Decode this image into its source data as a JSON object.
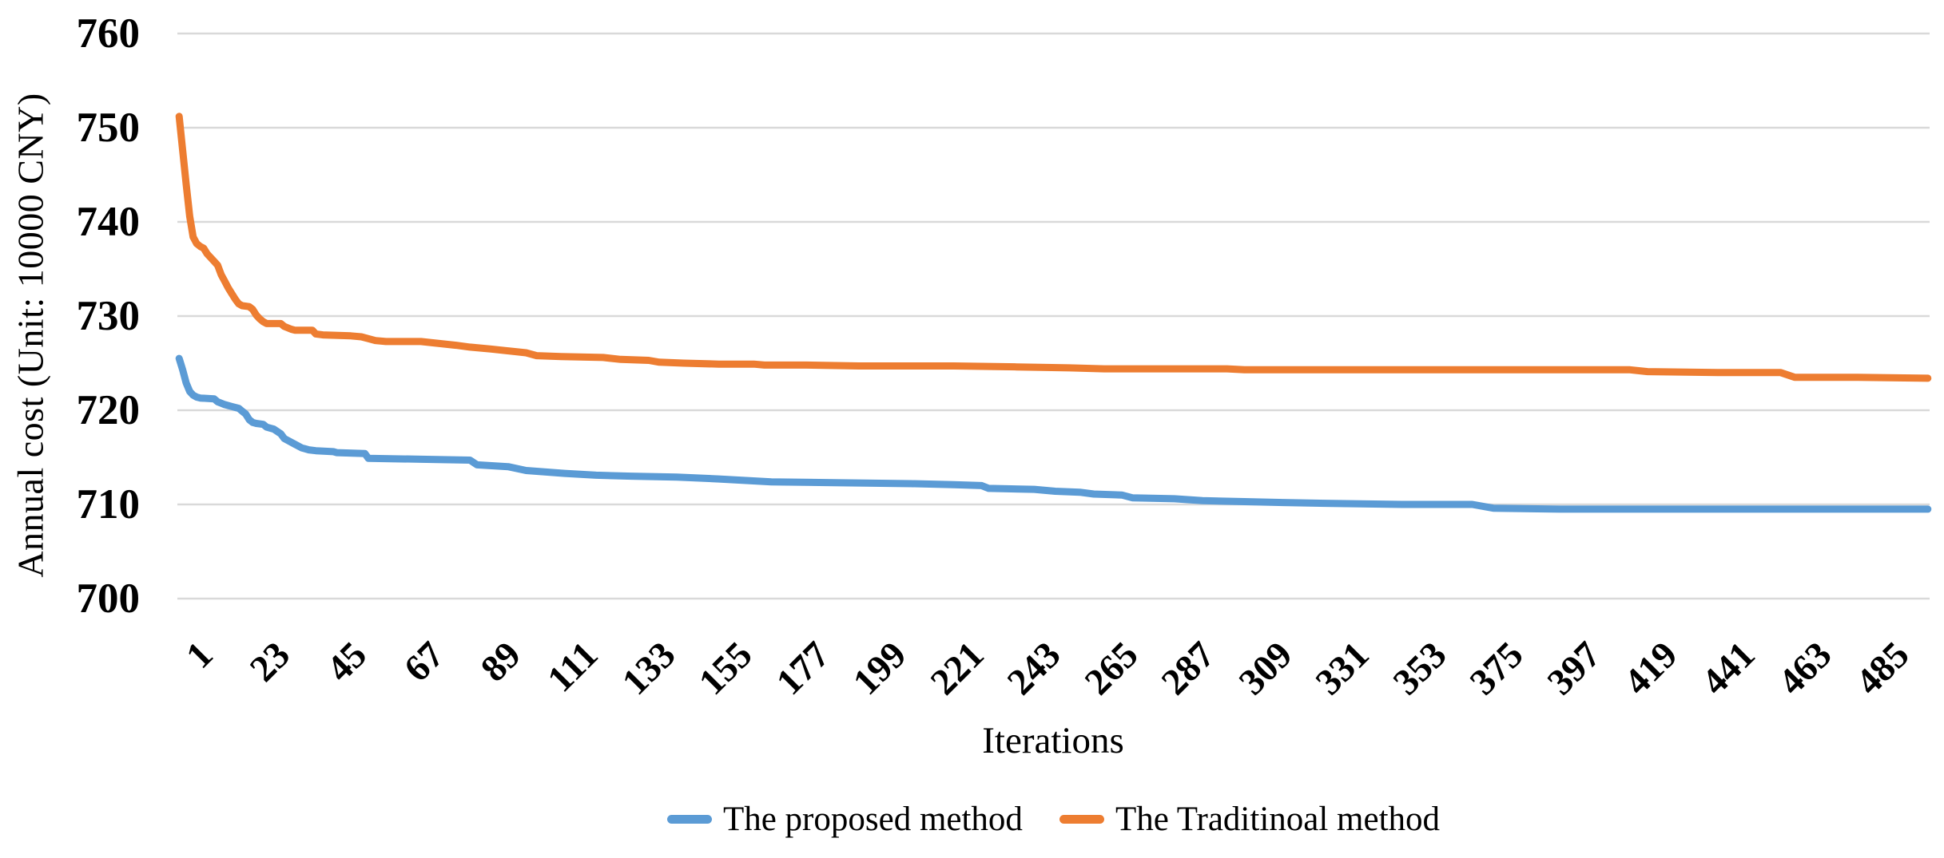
{
  "chart": {
    "y_axis": {
      "title": "Annual cost (Unit: 10000 CNY)",
      "min": 700,
      "max": 760,
      "tick_step": 10,
      "tick_labels": [
        "760",
        "750",
        "740",
        "730",
        "720",
        "710",
        "700"
      ]
    },
    "x_axis": {
      "title": "Iterations",
      "first_tick": 1,
      "tick_interval": 22,
      "category_count": 500,
      "tick_labels": [
        "1",
        "23",
        "45",
        "67",
        "89",
        "111",
        "133",
        "155",
        "177",
        "199",
        "221",
        "243",
        "265",
        "287",
        "309",
        "331",
        "353",
        "375",
        "397",
        "419",
        "441",
        "463",
        "485"
      ]
    },
    "colors": {
      "gridline": "#D9D9D9",
      "background": "#FFFFFF",
      "text": "#000000"
    }
  },
  "chart_data": {
    "type": "line",
    "title": "",
    "xlabel": "Iterations",
    "ylabel": "Annual cost (Unit: 10000 CNY)",
    "x_range": [
      1,
      500
    ],
    "ylim": [
      700,
      760
    ],
    "grid": "horizontal-only",
    "legend_position": "bottom-center",
    "series": [
      {
        "name": "The proposed method",
        "id": "proposed",
        "color": "#5B9BD5",
        "points": [
          [
            1,
            725.5
          ],
          [
            2,
            724.3
          ],
          [
            3,
            722.9
          ],
          [
            4,
            722.0
          ],
          [
            5,
            721.6
          ],
          [
            6,
            721.4
          ],
          [
            7,
            721.3
          ],
          [
            11,
            721.2
          ],
          [
            12,
            720.9
          ],
          [
            14,
            720.6
          ],
          [
            16,
            720.4
          ],
          [
            18,
            720.2
          ],
          [
            19,
            719.9
          ],
          [
            20,
            719.6
          ],
          [
            21,
            719.0
          ],
          [
            22,
            718.7
          ],
          [
            23,
            718.6
          ],
          [
            25,
            718.5
          ],
          [
            26,
            718.2
          ],
          [
            28,
            718.0
          ],
          [
            30,
            717.5
          ],
          [
            31,
            717.0
          ],
          [
            32,
            716.8
          ],
          [
            34,
            716.4
          ],
          [
            36,
            716.0
          ],
          [
            38,
            715.8
          ],
          [
            40,
            715.7
          ],
          [
            45,
            715.6
          ],
          [
            46,
            715.5
          ],
          [
            54,
            715.4
          ],
          [
            55,
            714.9
          ],
          [
            70,
            714.8
          ],
          [
            84,
            714.7
          ],
          [
            86,
            714.2
          ],
          [
            95,
            714.0
          ],
          [
            100,
            713.6
          ],
          [
            111,
            713.3
          ],
          [
            120,
            713.1
          ],
          [
            130,
            713.0
          ],
          [
            143,
            712.9
          ],
          [
            155,
            712.7
          ],
          [
            170,
            712.4
          ],
          [
            190,
            712.3
          ],
          [
            210,
            712.2
          ],
          [
            222,
            712.1
          ],
          [
            230,
            712.0
          ],
          [
            232,
            711.7
          ],
          [
            245,
            711.6
          ],
          [
            251,
            711.4
          ],
          [
            258,
            711.3
          ],
          [
            262,
            711.1
          ],
          [
            270,
            711.0
          ],
          [
            273,
            710.7
          ],
          [
            285,
            710.6
          ],
          [
            293,
            710.4
          ],
          [
            305,
            710.3
          ],
          [
            316,
            710.2
          ],
          [
            330,
            710.1
          ],
          [
            350,
            710.0
          ],
          [
            370,
            710.0
          ],
          [
            376,
            709.6
          ],
          [
            395,
            709.5
          ],
          [
            450,
            709.5
          ],
          [
            500,
            709.5
          ]
        ]
      },
      {
        "name": "The Traditinoal method",
        "id": "traditional",
        "color": "#ED7D31",
        "points": [
          [
            1,
            751.2
          ],
          [
            2,
            747.6
          ],
          [
            3,
            744.0
          ],
          [
            4,
            740.6
          ],
          [
            5,
            738.4
          ],
          [
            6,
            737.7
          ],
          [
            7,
            737.4
          ],
          [
            8,
            737.2
          ],
          [
            9,
            736.6
          ],
          [
            10,
            736.2
          ],
          [
            11,
            735.8
          ],
          [
            12,
            735.4
          ],
          [
            13,
            734.4
          ],
          [
            14,
            733.7
          ],
          [
            15,
            733.0
          ],
          [
            16,
            732.4
          ],
          [
            17,
            731.8
          ],
          [
            18,
            731.3
          ],
          [
            19,
            731.1
          ],
          [
            21,
            731.0
          ],
          [
            22,
            730.7
          ],
          [
            23,
            730.1
          ],
          [
            24,
            729.7
          ],
          [
            25,
            729.4
          ],
          [
            26,
            729.2
          ],
          [
            30,
            729.2
          ],
          [
            31,
            728.9
          ],
          [
            33,
            728.6
          ],
          [
            34,
            728.5
          ],
          [
            39,
            728.5
          ],
          [
            40,
            728.1
          ],
          [
            42,
            728.0
          ],
          [
            50,
            727.9
          ],
          [
            53,
            727.8
          ],
          [
            55,
            727.6
          ],
          [
            57,
            727.4
          ],
          [
            60,
            727.3
          ],
          [
            70,
            727.3
          ],
          [
            80,
            726.9
          ],
          [
            84,
            726.7
          ],
          [
            90,
            726.5
          ],
          [
            100,
            726.1
          ],
          [
            103,
            725.8
          ],
          [
            110,
            725.7
          ],
          [
            122,
            725.6
          ],
          [
            127,
            725.4
          ],
          [
            135,
            725.3
          ],
          [
            138,
            725.1
          ],
          [
            145,
            725.0
          ],
          [
            155,
            724.9
          ],
          [
            165,
            724.9
          ],
          [
            168,
            724.8
          ],
          [
            180,
            724.8
          ],
          [
            195,
            724.7
          ],
          [
            222,
            724.7
          ],
          [
            240,
            724.6
          ],
          [
            255,
            724.5
          ],
          [
            265,
            724.4
          ],
          [
            300,
            724.4
          ],
          [
            305,
            724.3
          ],
          [
            360,
            724.3
          ],
          [
            415,
            724.3
          ],
          [
            420,
            724.1
          ],
          [
            440,
            724.0
          ],
          [
            458,
            724.0
          ],
          [
            462,
            723.5
          ],
          [
            480,
            723.5
          ],
          [
            500,
            723.4
          ]
        ]
      }
    ]
  }
}
